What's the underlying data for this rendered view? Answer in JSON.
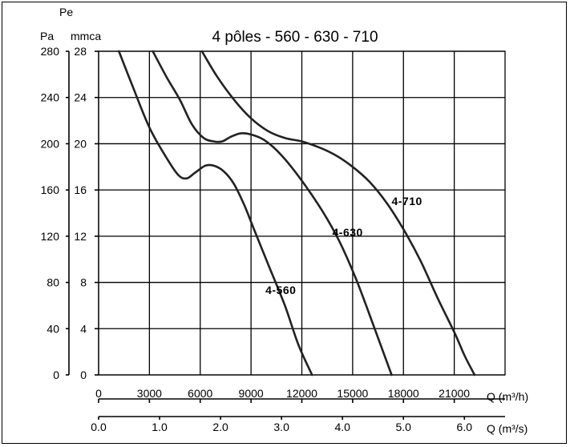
{
  "chart_data": {
    "type": "line",
    "title": "4 pôles - 560 - 630 - 710",
    "y_axis_pa": {
      "label": "Pa",
      "ticks": [
        0,
        40,
        80,
        120,
        160,
        200,
        240,
        280
      ],
      "range": [
        0,
        280
      ]
    },
    "y_axis_mmca": {
      "label_top": "Pe",
      "label": "mmca",
      "ticks": [
        0,
        4,
        8,
        12,
        16,
        20,
        24,
        28
      ],
      "range": [
        0,
        28
      ]
    },
    "x_axis_m3h": {
      "label": "Q (m³/h)",
      "ticks": [
        0,
        3000,
        6000,
        9000,
        12000,
        15000,
        18000,
        21000
      ],
      "range": [
        0,
        24000
      ]
    },
    "x_axis_m3s": {
      "label": "Q (m³/s)",
      "ticks": [
        "0.0",
        "1.0",
        "2.0",
        "3.0",
        "4.0",
        "5.0",
        "6.0"
      ],
      "range": [
        0,
        6.667
      ]
    },
    "grid": true,
    "series": [
      {
        "name": "4-560",
        "label_at": [
          9850,
          70
        ],
        "points": [
          [
            1200,
            280
          ],
          [
            2000,
            250
          ],
          [
            3000,
            214
          ],
          [
            4000,
            188
          ],
          [
            4700,
            173
          ],
          [
            5200,
            170
          ],
          [
            5700,
            175
          ],
          [
            6300,
            181
          ],
          [
            6800,
            181
          ],
          [
            7400,
            176
          ],
          [
            8000,
            165
          ],
          [
            8600,
            147
          ],
          [
            9200,
            125
          ],
          [
            10000,
            96
          ],
          [
            11000,
            60
          ],
          [
            11800,
            26
          ],
          [
            12600,
            0
          ]
        ]
      },
      {
        "name": "4-630",
        "label_at": [
          13800,
          120
        ],
        "points": [
          [
            3200,
            280
          ],
          [
            4000,
            258
          ],
          [
            4800,
            238
          ],
          [
            5500,
            217
          ],
          [
            6200,
            205
          ],
          [
            6800,
            202
          ],
          [
            7300,
            202
          ],
          [
            7800,
            206
          ],
          [
            8400,
            209
          ],
          [
            9000,
            208
          ],
          [
            9800,
            203
          ],
          [
            10800,
            190
          ],
          [
            12000,
            168
          ],
          [
            13200,
            142
          ],
          [
            14200,
            116
          ],
          [
            15200,
            83
          ],
          [
            16000,
            52
          ],
          [
            16800,
            20
          ],
          [
            17300,
            0
          ]
        ]
      },
      {
        "name": "4-710",
        "label_at": [
          17300,
          147
        ],
        "points": [
          [
            6100,
            280
          ],
          [
            7000,
            258
          ],
          [
            8000,
            238
          ],
          [
            9000,
            222
          ],
          [
            10000,
            211
          ],
          [
            11000,
            205
          ],
          [
            12000,
            202
          ],
          [
            13000,
            197
          ],
          [
            14000,
            190
          ],
          [
            15000,
            180
          ],
          [
            16000,
            167
          ],
          [
            17000,
            149
          ],
          [
            18000,
            126
          ],
          [
            19000,
            99
          ],
          [
            20000,
            67
          ],
          [
            21000,
            37
          ],
          [
            21600,
            17
          ],
          [
            22200,
            0
          ]
        ]
      }
    ]
  }
}
